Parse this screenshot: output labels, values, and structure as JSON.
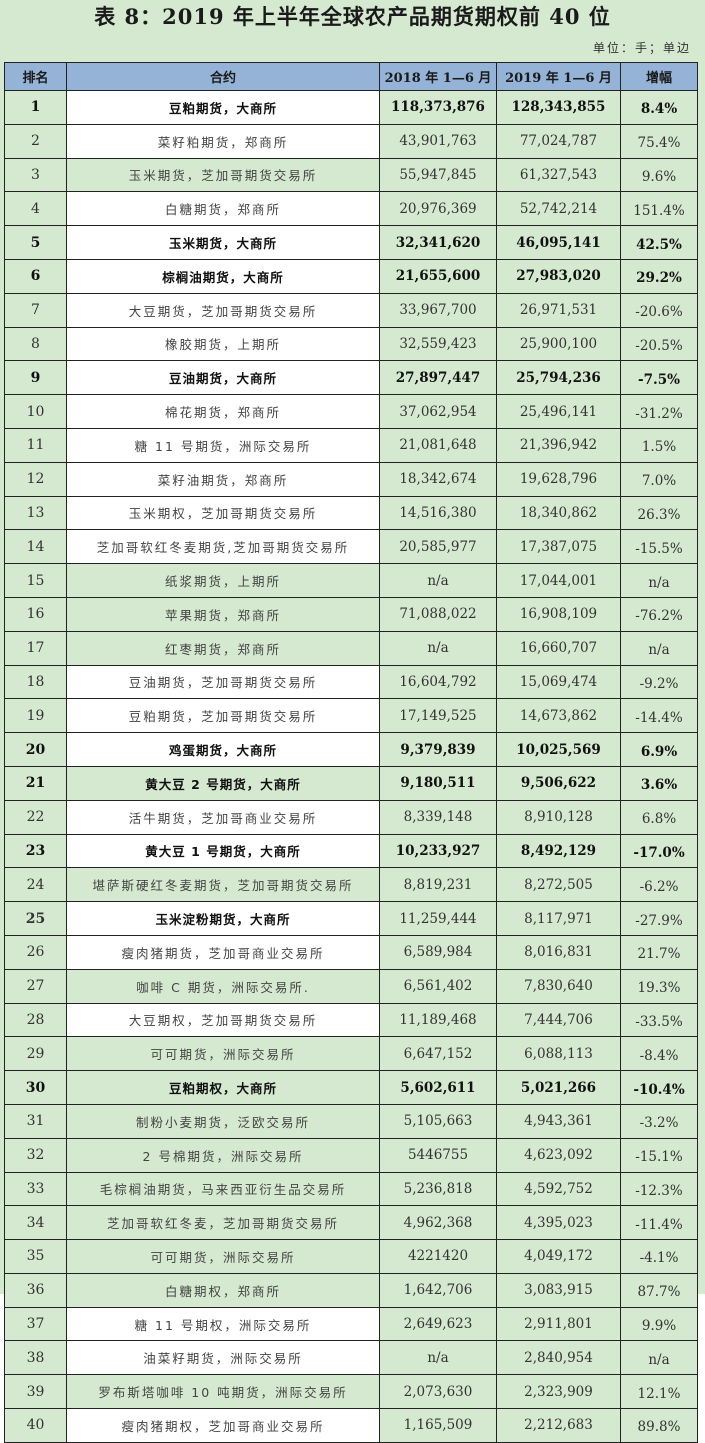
{
  "title": "表 8：2019 年上半年全球农产品期货期权前 40 位",
  "unit": "单位：手；单边",
  "colors": {
    "background": "#d5e8d0",
    "header": "#95b3d7",
    "contract_cell": "#ffffff"
  },
  "table": {
    "headers": [
      "排名",
      "合约",
      "2018 年 1—6 月",
      "2019 年 1—6 月",
      "增幅"
    ],
    "rows": [
      {
        "rank": "1",
        "contract": "豆粕期货，大商所",
        "y2018": "118,373,876",
        "y2019": "128,343,855",
        "growth": "8.4%"
      },
      {
        "rank": "2",
        "contract": "菜籽粕期货，郑商所",
        "y2018": "43,901,763",
        "y2019": "77,024,787",
        "growth": "75.4%"
      },
      {
        "rank": "3",
        "contract": "玉米期货，芝加哥期货交易所",
        "y2018": "55,947,845",
        "y2019": "61,327,543",
        "growth": "9.6%"
      },
      {
        "rank": "4",
        "contract": "白糖期货，郑商所",
        "y2018": "20,976,369",
        "y2019": "52,742,214",
        "growth": "151.4%"
      },
      {
        "rank": "5",
        "contract": "玉米期货，大商所",
        "y2018": "32,341,620",
        "y2019": "46,095,141",
        "growth": "42.5%"
      },
      {
        "rank": "6",
        "contract": "棕榈油期货，大商所",
        "y2018": "21,655,600",
        "y2019": "27,983,020",
        "growth": "29.2%"
      },
      {
        "rank": "7",
        "contract": "大豆期货，芝加哥期货交易所",
        "y2018": "33,967,700",
        "y2019": "26,971,531",
        "growth": "-20.6%"
      },
      {
        "rank": "8",
        "contract": "橡胶期货，上期所",
        "y2018": "32,559,423",
        "y2019": "25,900,100",
        "growth": "-20.5%"
      },
      {
        "rank": "9",
        "contract": "豆油期货，大商所",
        "y2018": "27,897,447",
        "y2019": "25,794,236",
        "growth": "-7.5%"
      },
      {
        "rank": "10",
        "contract": "棉花期货，郑商所",
        "y2018": "37,062,954",
        "y2019": "25,496,141",
        "growth": "-31.2%"
      },
      {
        "rank": "11",
        "contract": "糖 11 号期货，洲际交易所",
        "y2018": "21,081,648",
        "y2019": "21,396,942",
        "growth": "1.5%"
      },
      {
        "rank": "12",
        "contract": "菜籽油期货，郑商所",
        "y2018": "18,342,674",
        "y2019": "19,628,796",
        "growth": "7.0%"
      },
      {
        "rank": "13",
        "contract": "玉米期权，芝加哥期货交易所",
        "y2018": "14,516,380",
        "y2019": "18,340,862",
        "growth": "26.3%"
      },
      {
        "rank": "14",
        "contract": "芝加哥软红冬麦期货,芝加哥期货交易所",
        "y2018": "20,585,977",
        "y2019": "17,387,075",
        "growth": "-15.5%"
      },
      {
        "rank": "15",
        "contract": "纸浆期货，上期所",
        "y2018": "n/a",
        "y2019": "17,044,001",
        "growth": "n/a"
      },
      {
        "rank": "16",
        "contract": "苹果期货，郑商所",
        "y2018": "71,088,022",
        "y2019": "16,908,109",
        "growth": "-76.2%"
      },
      {
        "rank": "17",
        "contract": "红枣期货，郑商所",
        "y2018": "n/a",
        "y2019": "16,660,707",
        "growth": "n/a"
      },
      {
        "rank": "18",
        "contract": "豆油期货，芝加哥期货交易所",
        "y2018": "16,604,792",
        "y2019": "15,069,474",
        "growth": "-9.2%"
      },
      {
        "rank": "19",
        "contract": "豆粕期货，芝加哥期货交易所",
        "y2018": "17,149,525",
        "y2019": "14,673,862",
        "growth": "-14.4%"
      },
      {
        "rank": "20",
        "contract": "鸡蛋期货，大商所",
        "y2018": "9,379,839",
        "y2019": "10,025,569",
        "growth": "6.9%"
      },
      {
        "rank": "21",
        "contract": "黄大豆 2 号期货，大商所",
        "y2018": "9,180,511",
        "y2019": "9,506,622",
        "growth": "3.6%"
      },
      {
        "rank": "22",
        "contract": "活牛期货，芝加哥商业交易所",
        "y2018": "8,339,148",
        "y2019": "8,910,128",
        "growth": "6.8%"
      },
      {
        "rank": "23",
        "contract": "黄大豆 1 号期货，大商所",
        "y2018": "10,233,927",
        "y2019": "8,492,129",
        "growth": "-17.0%"
      },
      {
        "rank": "24",
        "contract": "堪萨斯硬红冬麦期货，芝加哥期货交易所",
        "y2018": "8,819,231",
        "y2019": "8,272,505",
        "growth": "-6.2%"
      },
      {
        "rank": "25",
        "contract": "玉米淀粉期货，大商所",
        "y2018": "11,259,444",
        "y2019": "8,117,971",
        "growth": "-27.9%"
      },
      {
        "rank": "26",
        "contract": "瘦肉猪期货，芝加哥商业交易所",
        "y2018": "6,589,984",
        "y2019": "8,016,831",
        "growth": "21.7%"
      },
      {
        "rank": "27",
        "contract": "咖啡 C 期货，洲际交易所.",
        "y2018": "6,561,402",
        "y2019": "7,830,640",
        "growth": "19.3%"
      },
      {
        "rank": "28",
        "contract": "大豆期权，芝加哥期货交易所",
        "y2018": "11,189,468",
        "y2019": "7,444,706",
        "growth": "-33.5%"
      },
      {
        "rank": "29",
        "contract": "可可期货，洲际交易所",
        "y2018": "6,647,152",
        "y2019": "6,088,113",
        "growth": "-8.4%"
      },
      {
        "rank": "30",
        "contract": "豆粕期权，大商所",
        "y2018": "5,602,611",
        "y2019": "5,021,266",
        "growth": "-10.4%"
      },
      {
        "rank": "31",
        "contract": "制粉小麦期货，泛欧交易所",
        "y2018": "5,105,663",
        "y2019": "4,943,361",
        "growth": "-3.2%"
      },
      {
        "rank": "32",
        "contract": "2 号棉期货，洲际交易所",
        "y2018": "5446755",
        "y2019": "4,623,092",
        "growth": "-15.1%"
      },
      {
        "rank": "33",
        "contract": "毛棕榈油期货，马来西亚衍生品交易所",
        "y2018": "5,236,818",
        "y2019": "4,592,752",
        "growth": "-12.3%"
      },
      {
        "rank": "34",
        "contract": "芝加哥软红冬麦，芝加哥期货交易所",
        "y2018": "4,962,368",
        "y2019": "4,395,023",
        "growth": "-11.4%"
      },
      {
        "rank": "35",
        "contract": "可可期货，洲际交易所",
        "y2018": "4221420",
        "y2019": "4,049,172",
        "growth": "-4.1%"
      },
      {
        "rank": "36",
        "contract": "白糖期权，郑商所",
        "y2018": "1,642,706",
        "y2019": "3,083,915",
        "growth": "87.7%"
      },
      {
        "rank": "37",
        "contract": "糖 11 号期权，洲际交易所",
        "y2018": "2,649,623",
        "y2019": "2,911,801",
        "growth": "9.9%"
      },
      {
        "rank": "38",
        "contract": "油菜籽期货，洲际交易所",
        "y2018": "n/a",
        "y2019": "2,840,954",
        "growth": "n/a"
      },
      {
        "rank": "39",
        "contract": "罗布斯塔咖啡 10 吨期货，洲际交易所",
        "y2018": "2,073,630",
        "y2019": "2,323,909",
        "growth": "12.1%"
      },
      {
        "rank": "40",
        "contract": "瘦肉猪期权，芝加哥商业交易所",
        "y2018": "1,165,509",
        "y2019": "2,212,683",
        "growth": "89.8%"
      }
    ],
    "bold_rows": [
      1,
      5,
      6,
      9,
      20,
      21,
      23,
      30
    ],
    "bold_contract_only_rows": [
      25
    ],
    "green_contract_rows": [
      3,
      15,
      16,
      17,
      21,
      24,
      27,
      29,
      30,
      31,
      32,
      33,
      34,
      35,
      36,
      39
    ]
  }
}
